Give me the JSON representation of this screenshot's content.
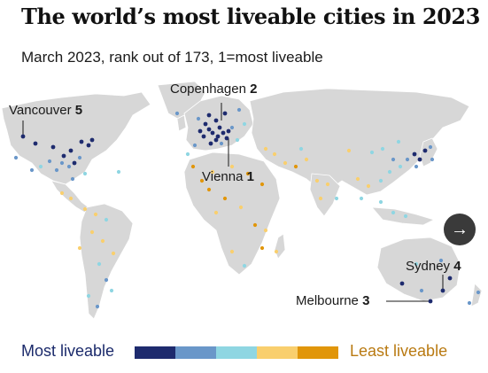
{
  "title": "The world’s most liveable cities in 2023",
  "subtitle": "March 2023, rank out of 173, 1=most liveable",
  "map": {
    "land_color": "#d7d7d7",
    "border_color": "#ffffff",
    "labels": [
      {
        "city": "Copenhagen",
        "rank": "2"
      },
      {
        "city": "Vancouver",
        "rank": "5"
      },
      {
        "city": "Vienna",
        "rank": "1"
      },
      {
        "city": "Sydney",
        "rank": "4"
      },
      {
        "city": "Melbourne",
        "rank": "3"
      }
    ]
  },
  "next_icon": "arrow-right-icon",
  "legend": {
    "most_label": "Most liveable",
    "least_label": "Least liveable",
    "colors": [
      "#1e2b6e",
      "#6a97c9",
      "#8fd6e2",
      "#f9cf6e",
      "#e1960a"
    ]
  }
}
